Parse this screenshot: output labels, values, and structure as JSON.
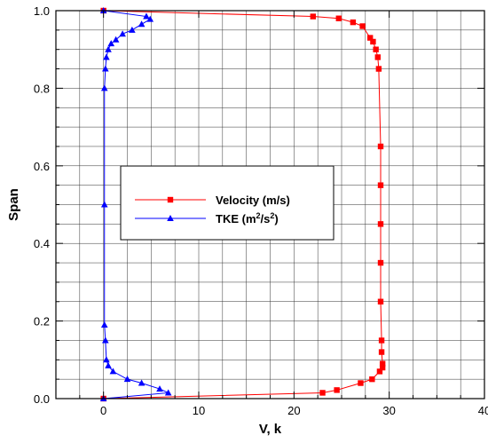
{
  "chart_data": {
    "type": "line",
    "xlabel": "V, k",
    "ylabel": "Span",
    "xlim": [
      -5,
      40
    ],
    "ylim": [
      0,
      1
    ],
    "x_major_ticks": [
      0,
      10,
      20,
      30,
      40
    ],
    "y_major_ticks": [
      0.0,
      0.2,
      0.4,
      0.6,
      0.8,
      1.0
    ],
    "x_tick_labels": [
      "0",
      "10",
      "20",
      "30",
      "40"
    ],
    "y_tick_labels": [
      "0.0",
      "0.2",
      "0.4",
      "0.6",
      "0.8",
      "1.0"
    ],
    "grid": true,
    "legend_placement": "center-left",
    "series": [
      {
        "name": "Velocity (m/s)",
        "color": "#ff0000",
        "marker": "square",
        "points": [
          {
            "x": 0.0,
            "y": 0.0
          },
          {
            "x": 23.0,
            "y": 0.015
          },
          {
            "x": 24.5,
            "y": 0.022
          },
          {
            "x": 27.0,
            "y": 0.04
          },
          {
            "x": 28.2,
            "y": 0.05
          },
          {
            "x": 29.0,
            "y": 0.07
          },
          {
            "x": 29.3,
            "y": 0.08
          },
          {
            "x": 29.3,
            "y": 0.09
          },
          {
            "x": 29.2,
            "y": 0.12
          },
          {
            "x": 29.2,
            "y": 0.15
          },
          {
            "x": 29.1,
            "y": 0.25
          },
          {
            "x": 29.1,
            "y": 0.35
          },
          {
            "x": 29.1,
            "y": 0.45
          },
          {
            "x": 29.1,
            "y": 0.55
          },
          {
            "x": 29.1,
            "y": 0.65
          },
          {
            "x": 28.9,
            "y": 0.85
          },
          {
            "x": 28.8,
            "y": 0.88
          },
          {
            "x": 28.6,
            "y": 0.9
          },
          {
            "x": 28.3,
            "y": 0.92
          },
          {
            "x": 28.0,
            "y": 0.93
          },
          {
            "x": 27.2,
            "y": 0.96
          },
          {
            "x": 26.2,
            "y": 0.97
          },
          {
            "x": 24.7,
            "y": 0.98
          },
          {
            "x": 22.0,
            "y": 0.985
          },
          {
            "x": 0.0,
            "y": 1.0
          }
        ]
      },
      {
        "name": "TKE (m²/s²)",
        "name_base": "TKE (m",
        "name_sup1": "2",
        "name_mid": "/s",
        "name_sup2": "2",
        "name_end": ")",
        "color": "#0000ff",
        "marker": "triangle",
        "points": [
          {
            "x": 0.0,
            "y": 0.0
          },
          {
            "x": 6.8,
            "y": 0.015
          },
          {
            "x": 5.9,
            "y": 0.025
          },
          {
            "x": 4.0,
            "y": 0.04
          },
          {
            "x": 2.5,
            "y": 0.05
          },
          {
            "x": 1.0,
            "y": 0.07
          },
          {
            "x": 0.5,
            "y": 0.085
          },
          {
            "x": 0.3,
            "y": 0.1
          },
          {
            "x": 0.2,
            "y": 0.15
          },
          {
            "x": 0.1,
            "y": 0.19
          },
          {
            "x": 0.1,
            "y": 0.5
          },
          {
            "x": 0.1,
            "y": 0.8
          },
          {
            "x": 0.2,
            "y": 0.85
          },
          {
            "x": 0.3,
            "y": 0.88
          },
          {
            "x": 0.5,
            "y": 0.9
          },
          {
            "x": 0.8,
            "y": 0.915
          },
          {
            "x": 1.3,
            "y": 0.925
          },
          {
            "x": 2.0,
            "y": 0.94
          },
          {
            "x": 3.0,
            "y": 0.95
          },
          {
            "x": 4.0,
            "y": 0.965
          },
          {
            "x": 4.9,
            "y": 0.978
          },
          {
            "x": 4.5,
            "y": 0.985
          },
          {
            "x": 0.0,
            "y": 1.0
          }
        ]
      }
    ]
  }
}
